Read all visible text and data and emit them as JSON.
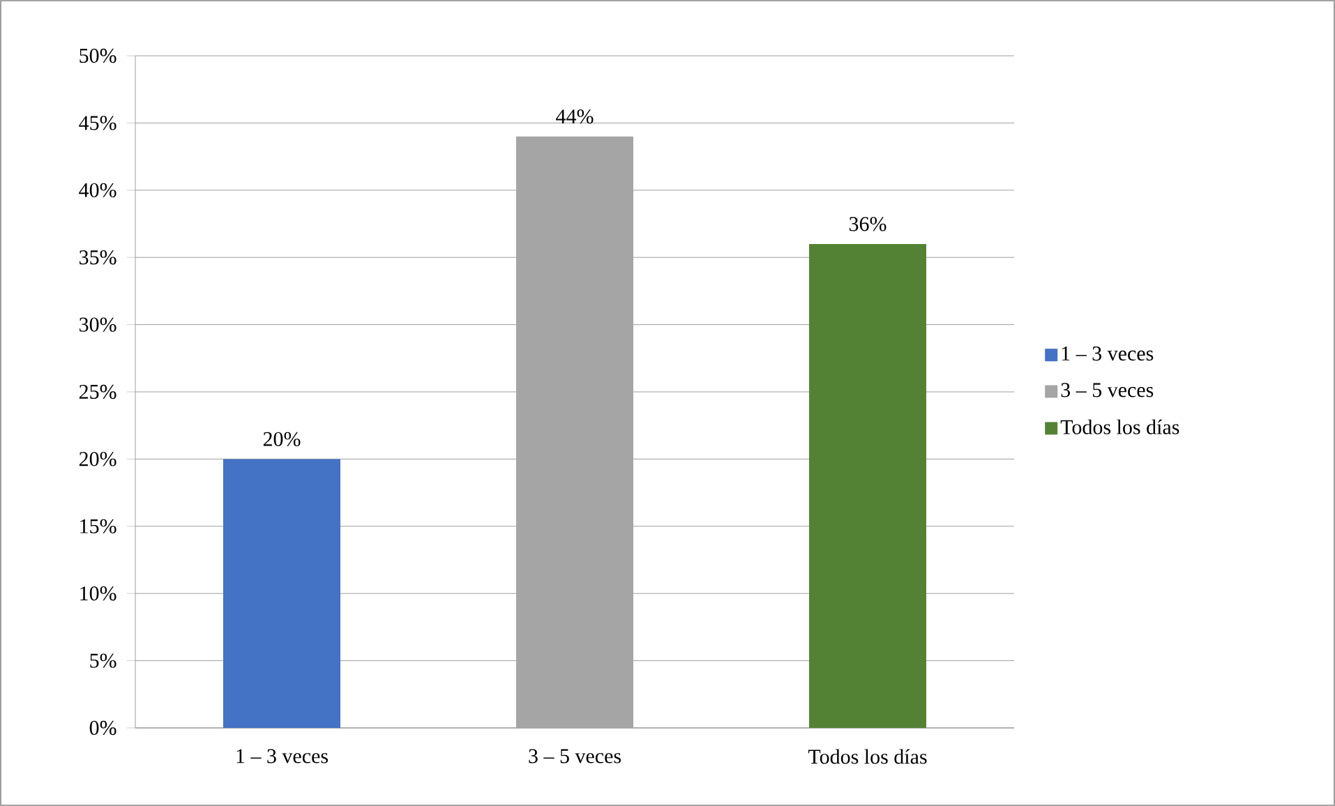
{
  "chart_data": {
    "type": "bar",
    "categories": [
      "1 – 3 veces",
      "3 – 5 veces",
      "Todos los días"
    ],
    "series": [
      {
        "name": "1 – 3 veces",
        "color": "#4472c4",
        "values": [
          20,
          null,
          null
        ],
        "value_labels": [
          "20%",
          null,
          null
        ]
      },
      {
        "name": "3 – 5 veces",
        "color": "#a5a5a5",
        "values": [
          null,
          44,
          null
        ],
        "value_labels": [
          null,
          "44%",
          null
        ]
      },
      {
        "name": "Todos los días",
        "color": "#548235",
        "values": [
          null,
          null,
          36
        ],
        "value_labels": [
          null,
          null,
          "36%"
        ]
      }
    ],
    "ylim": [
      0,
      50
    ],
    "yticks": [
      {
        "value": 0,
        "label": "0%"
      },
      {
        "value": 5,
        "label": "5%"
      },
      {
        "value": 10,
        "label": "10%"
      },
      {
        "value": 15,
        "label": "15%"
      },
      {
        "value": 20,
        "label": "20%"
      },
      {
        "value": 25,
        "label": "25%"
      },
      {
        "value": 30,
        "label": "30%"
      },
      {
        "value": 35,
        "label": "35%"
      },
      {
        "value": 40,
        "label": "40%"
      },
      {
        "value": 45,
        "label": "45%"
      },
      {
        "value": 50,
        "label": "50%"
      }
    ],
    "grid": "y",
    "legend": "right"
  }
}
